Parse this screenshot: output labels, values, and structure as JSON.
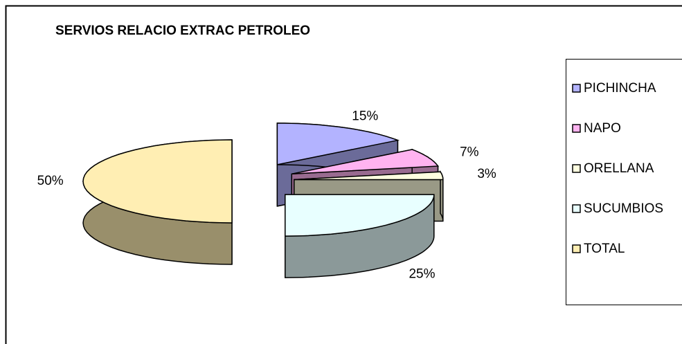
{
  "chart_data": {
    "type": "pie3d",
    "title": "SERVIOS RELACIO EXTRAC PETROLEO",
    "categories": [
      "PICHINCHA",
      "NAPO",
      "ORELLANA",
      "SUCUMBIOS",
      "TOTAL"
    ],
    "values": [
      15,
      7,
      3,
      25,
      50
    ],
    "value_labels": [
      "15%",
      "7%",
      "3%",
      "25%",
      "50%"
    ],
    "colors": [
      "#b3b3ff",
      "#ffb3f0",
      "#ffffe0",
      "#e8ffff",
      "#ffeeb3"
    ],
    "legend": "right"
  }
}
